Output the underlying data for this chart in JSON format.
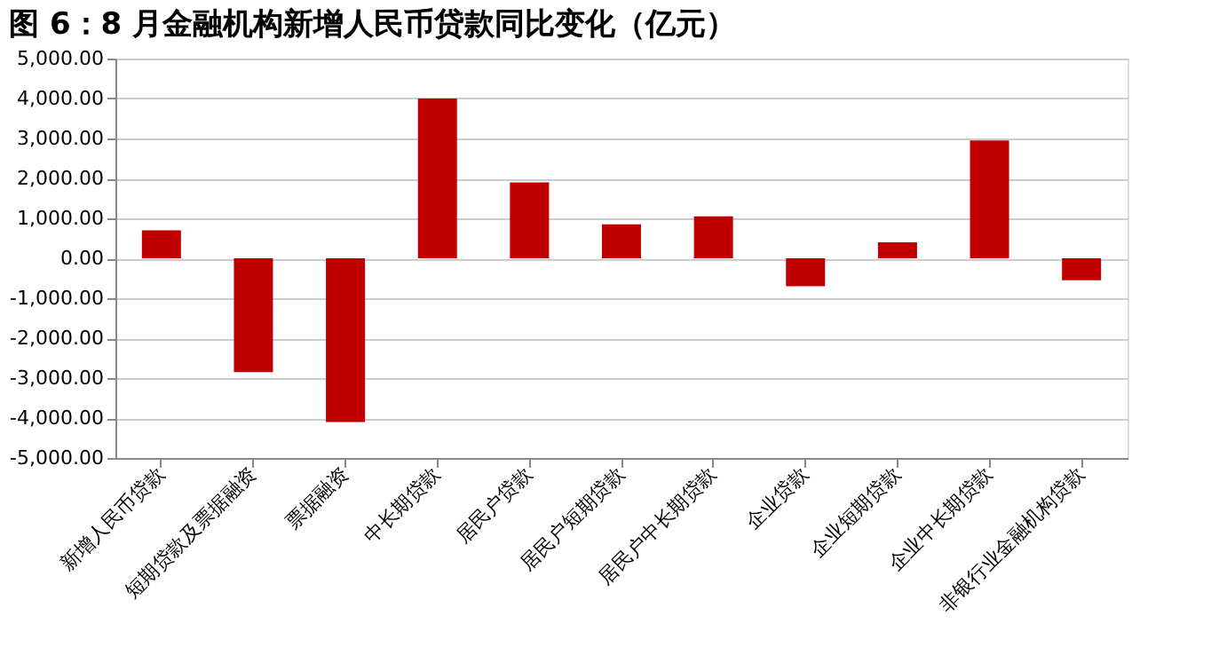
{
  "chart_data": {
    "type": "bar",
    "title": "图 6：8 月金融机构新增人民币贷款同比变化（亿元）",
    "categories": [
      "新增人民币贷款",
      "短期贷款及票据融资",
      "票据融资",
      "中长期贷款",
      "居民户贷款",
      "居民户短期贷款",
      "居民户中长期贷款",
      "企业贷款",
      "企业短期贷款",
      "企业中长期贷款",
      "非银行业金融机构贷款"
    ],
    "values": [
      700,
      -2850,
      -4100,
      4000,
      1900,
      850,
      1050,
      -700,
      400,
      2950,
      -550
    ],
    "color": "#c00000",
    "ylim": [
      -5000,
      5000
    ],
    "yticks": [
      {
        "value": -5000,
        "label": "-5,000.00"
      },
      {
        "value": -4000,
        "label": "-4,000.00"
      },
      {
        "value": -3000,
        "label": "-3,000.00"
      },
      {
        "value": -2000,
        "label": "-2,000.00"
      },
      {
        "value": -1000,
        "label": "-1,000.00"
      },
      {
        "value": 0,
        "label": "0.00"
      },
      {
        "value": 1000,
        "label": "1,000.00"
      },
      {
        "value": 2000,
        "label": "2,000.00"
      },
      {
        "value": 3000,
        "label": "3,000.00"
      },
      {
        "value": 4000,
        "label": "4,000.00"
      },
      {
        "value": 5000,
        "label": "5,000.00"
      }
    ],
    "grid": "y"
  }
}
